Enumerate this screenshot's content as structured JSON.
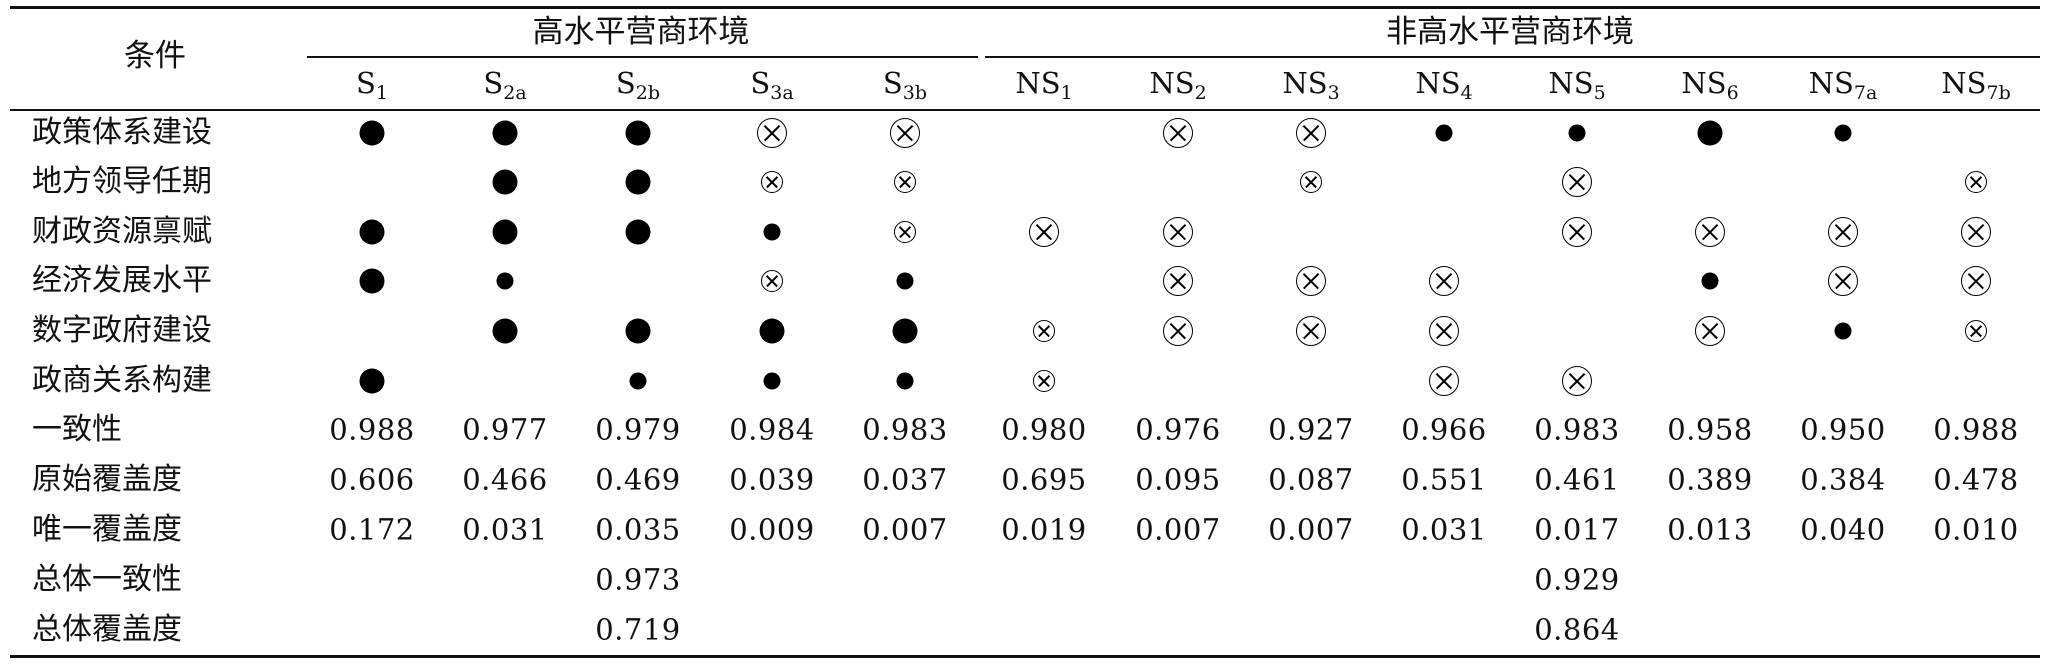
{
  "header": {
    "condition_label": "条件",
    "group_high": "高水平营商环境",
    "group_non_high": "非高水平营商环境"
  },
  "columns": [
    {
      "main": "S",
      "sub": "1"
    },
    {
      "main": "S",
      "sub": "2a"
    },
    {
      "main": "S",
      "sub": "2b"
    },
    {
      "main": "S",
      "sub": "3a"
    },
    {
      "main": "S",
      "sub": "3b"
    },
    {
      "main": "NS",
      "sub": "1"
    },
    {
      "main": "NS",
      "sub": "2"
    },
    {
      "main": "NS",
      "sub": "3"
    },
    {
      "main": "NS",
      "sub": "4"
    },
    {
      "main": "NS",
      "sub": "5"
    },
    {
      "main": "NS",
      "sub": "6"
    },
    {
      "main": "NS",
      "sub": "7a"
    },
    {
      "main": "NS",
      "sub": "7b"
    }
  ],
  "symbol_legend": {
    "core_present": "large filled circle",
    "peripheral_present": "small filled circle",
    "core_absent": "large circled cross",
    "peripheral_absent": "small circled cross",
    "blank": "condition does not matter"
  },
  "conditions": [
    {
      "label": "政策体系建设",
      "cells": [
        "core_present",
        "core_present",
        "core_present",
        "core_absent",
        "core_absent",
        "",
        "core_absent",
        "core_absent",
        "peripheral_present",
        "peripheral_present",
        "core_present",
        "peripheral_present",
        ""
      ]
    },
    {
      "label": "地方领导任期",
      "cells": [
        "",
        "core_present",
        "core_present",
        "peripheral_absent",
        "peripheral_absent",
        "",
        "",
        "peripheral_absent",
        "",
        "core_absent",
        "",
        "",
        "peripheral_absent"
      ]
    },
    {
      "label": "财政资源禀赋",
      "cells": [
        "core_present",
        "core_present",
        "core_present",
        "peripheral_present",
        "peripheral_absent",
        "core_absent",
        "core_absent",
        "",
        "",
        "core_absent",
        "core_absent",
        "core_absent",
        "core_absent"
      ]
    },
    {
      "label": "经济发展水平",
      "cells": [
        "core_present",
        "peripheral_present",
        "",
        "peripheral_absent",
        "peripheral_present",
        "",
        "core_absent",
        "core_absent",
        "core_absent",
        "",
        "peripheral_present",
        "core_absent",
        "core_absent"
      ]
    },
    {
      "label": "数字政府建设",
      "cells": [
        "",
        "core_present",
        "core_present",
        "core_present",
        "core_present",
        "peripheral_absent",
        "core_absent",
        "core_absent",
        "core_absent",
        "",
        "core_absent",
        "peripheral_present",
        "peripheral_absent"
      ]
    },
    {
      "label": "政商关系构建",
      "cells": [
        "core_present",
        "",
        "peripheral_present",
        "peripheral_present",
        "peripheral_present",
        "peripheral_absent",
        "",
        "",
        "core_absent",
        "core_absent",
        "",
        "",
        ""
      ]
    }
  ],
  "metrics": [
    {
      "label": "一致性",
      "values": [
        "0.988",
        "0.977",
        "0.979",
        "0.984",
        "0.983",
        "0.980",
        "0.976",
        "0.927",
        "0.966",
        "0.983",
        "0.958",
        "0.950",
        "0.988"
      ]
    },
    {
      "label": "原始覆盖度",
      "values": [
        "0.606",
        "0.466",
        "0.469",
        "0.039",
        "0.037",
        "0.695",
        "0.095",
        "0.087",
        "0.551",
        "0.461",
        "0.389",
        "0.384",
        "0.478"
      ]
    },
    {
      "label": "唯一覆盖度",
      "values": [
        "0.172",
        "0.031",
        "0.035",
        "0.009",
        "0.007",
        "0.019",
        "0.007",
        "0.007",
        "0.031",
        "0.017",
        "0.013",
        "0.040",
        "0.010"
      ]
    }
  ],
  "overall": [
    {
      "label": "总体一致性",
      "high": "0.973",
      "non_high": "0.929"
    },
    {
      "label": "总体覆盖度",
      "high": "0.719",
      "non_high": "0.864"
    }
  ]
}
